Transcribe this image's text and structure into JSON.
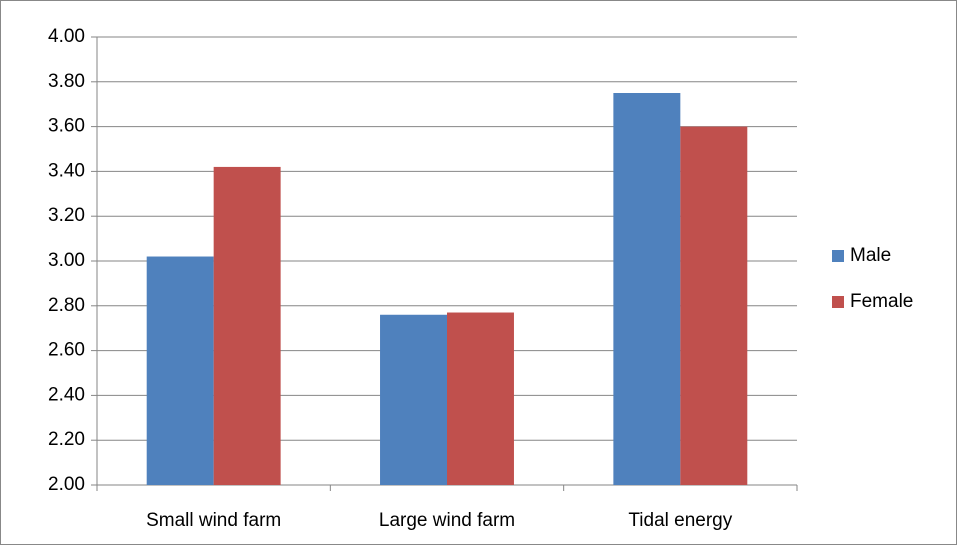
{
  "chart_data": {
    "type": "bar",
    "categories": [
      "Small wind farm",
      "Large wind farm",
      "Tidal energy"
    ],
    "series": [
      {
        "name": "Male",
        "color": "#4f81bd",
        "values": [
          3.02,
          2.76,
          3.75
        ]
      },
      {
        "name": "Female",
        "color": "#c0504d",
        "values": [
          3.42,
          2.77,
          3.6
        ]
      }
    ],
    "ylim": [
      2,
      4
    ],
    "yticks": [
      {
        "value": 2,
        "label": "2.00"
      },
      {
        "value": 2.2,
        "label": "2.20"
      },
      {
        "value": 2.4,
        "label": "2.40"
      },
      {
        "value": 2.6,
        "label": "2.60"
      },
      {
        "value": 2.8,
        "label": "2.80"
      },
      {
        "value": 3,
        "label": "3.00"
      },
      {
        "value": 3.2,
        "label": "3.20"
      },
      {
        "value": 3.4,
        "label": "3.40"
      },
      {
        "value": 3.6,
        "label": "3.60"
      },
      {
        "value": 3.8,
        "label": "3.80"
      },
      {
        "value": 4,
        "label": "4.00"
      }
    ],
    "grid": true,
    "legend": "right"
  }
}
